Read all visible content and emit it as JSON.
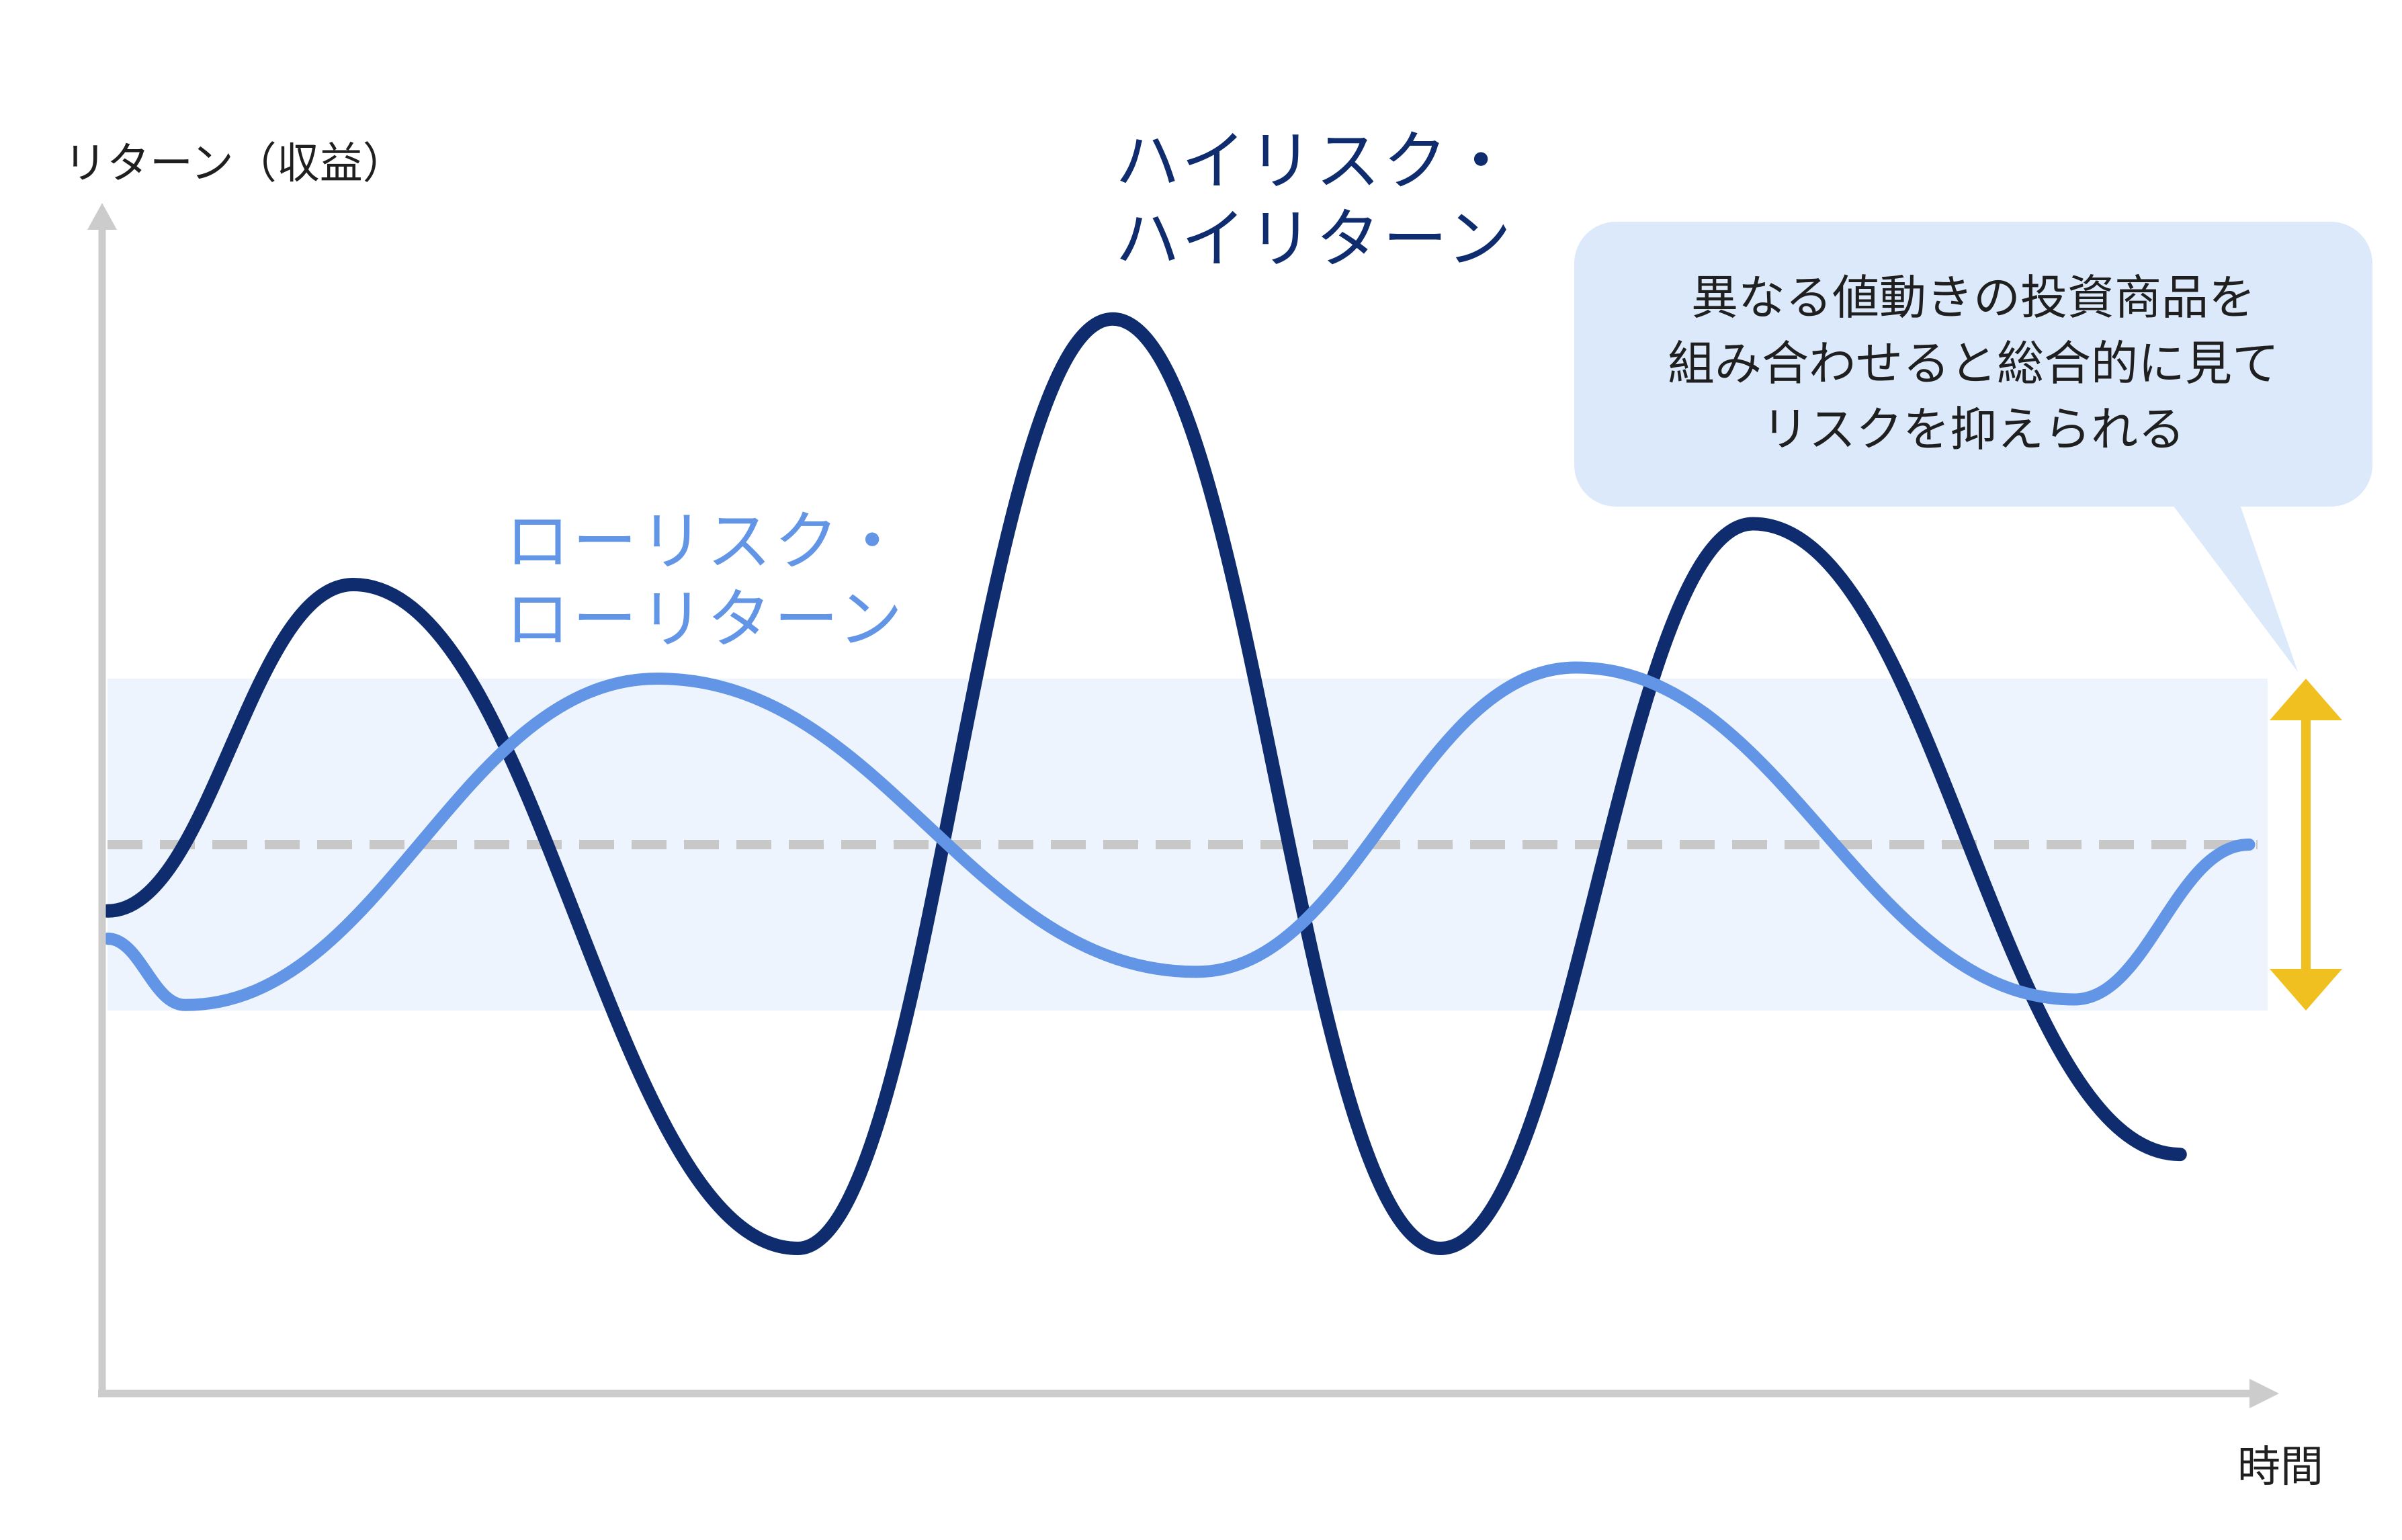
{
  "chart_data": {
    "type": "line",
    "title": "",
    "ylabel": "リターン（収益）",
    "xlabel": "時間",
    "annotation": {
      "lines": [
        "異なる値動きの投資商品を",
        "組み合わせると総合的に見て",
        "リスクを抑えられる"
      ]
    },
    "xlim": [
      0,
      100
    ],
    "ylim": [
      -10,
      10
    ],
    "baseline": 0,
    "band": [
      -3,
      3
    ],
    "series": [
      {
        "name": "ハイリスク・ハイリターン",
        "name_lines": [
          "ハイリスク・",
          "ハイリターン"
        ],
        "color": "#0f2d6e",
        "x": [
          0,
          11.4,
          32,
          46.6,
          61.8,
          76.3,
          96.1
        ],
        "y": [
          -1.2,
          4.7,
          -7.3,
          9.5,
          -7.3,
          5.8,
          -5.6
        ]
      },
      {
        "name": "ローリスク・ローリターン",
        "name_lines": [
          "ローリスク・",
          "ローリターン"
        ],
        "color": "#6395e6",
        "x": [
          0,
          3.6,
          25.5,
          50.5,
          68.1,
          91.2,
          99.3
        ],
        "y": [
          -1.7,
          -2.9,
          3.0,
          -2.3,
          3.2,
          -2.8,
          0.0
        ]
      }
    ],
    "colors": {
      "axis": "#cccccc",
      "baseline": "#c8c8c8",
      "band": "#eef4fd",
      "range_arrow": "#f0c020"
    },
    "grid": false,
    "legend": "none"
  }
}
